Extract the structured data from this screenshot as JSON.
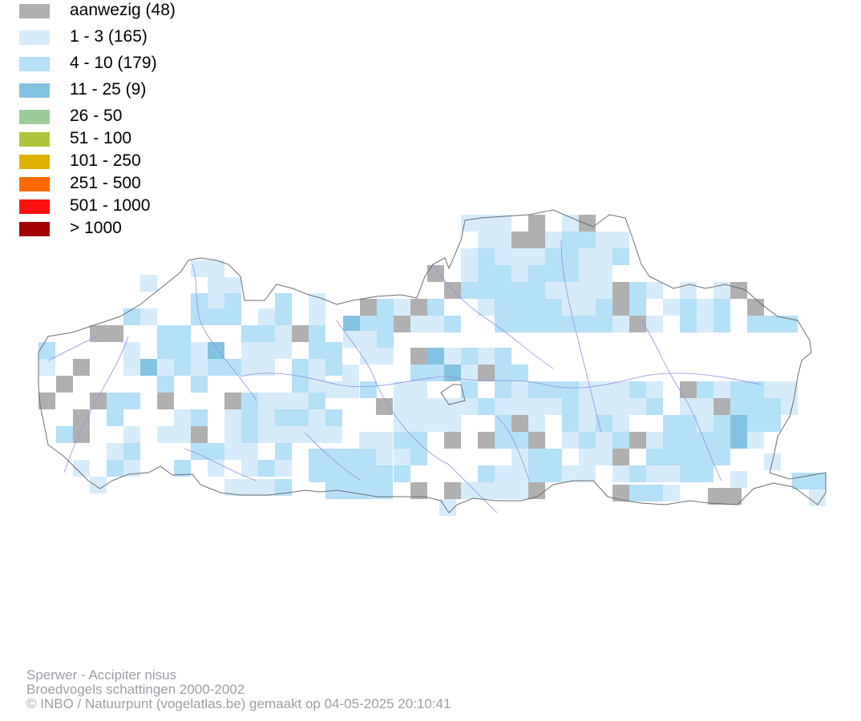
{
  "legend": {
    "items": [
      {
        "label": "aanwezig (48)",
        "color": "#b0b0b0"
      },
      {
        "label": "1 - 3 (165)",
        "color": "#d6ecfa"
      },
      {
        "label": "4 - 10 (179)",
        "color": "#b4e0f8"
      },
      {
        "label": "11 - 25 (9)",
        "color": "#84c2e2"
      },
      {
        "label": "26 - 50",
        "color": "#99cc99"
      },
      {
        "label": "51 - 100",
        "color": "#b0c43a"
      },
      {
        "label": "101 - 250",
        "color": "#e0b000"
      },
      {
        "label": "251 - 500",
        "color": "#ff6a00"
      },
      {
        "label": "501 - 1000",
        "color": "#ff1010"
      },
      {
        "label": "> 1000",
        "color": "#a50000"
      }
    ]
  },
  "footer": {
    "species": "Sperwer - Accipiter nisus",
    "subtitle": "Broedvogels schattingen 2000-2002",
    "credit": "© INBO / Natuurpunt (vogelatlas.be) gemaakt op 04-05-2025 20:10:41"
  },
  "map": {
    "border_color": "#6e6e6e",
    "river_color": "#8f8fe8"
  }
}
